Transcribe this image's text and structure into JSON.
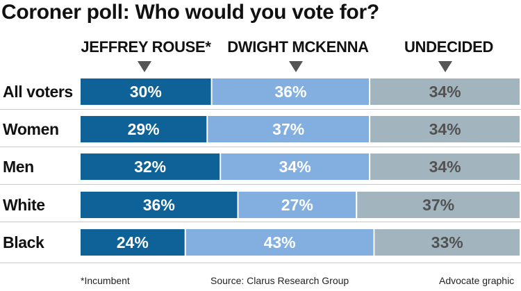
{
  "title": "Coroner poll: Who would you vote for?",
  "footer": {
    "note": "*Incumbent",
    "source": "Source: Clarus Research Group",
    "credit": "Advocate graphic"
  },
  "chart_data": {
    "type": "bar",
    "stacked": true,
    "orientation": "horizontal",
    "categories": [
      "All voters",
      "Women",
      "Men",
      "White",
      "Black"
    ],
    "series": [
      {
        "name": "JEFFREY ROUSE*",
        "values": [
          30,
          29,
          32,
          36,
          24
        ],
        "labels": [
          "30%",
          "29%",
          "32%",
          "36%",
          "24%"
        ],
        "color": "#0f6298",
        "label_color": "#ffffff"
      },
      {
        "name": "DWIGHT MCKENNA",
        "values": [
          36,
          37,
          34,
          27,
          43
        ],
        "labels": [
          "36%",
          "37%",
          "34%",
          "27%",
          "43%"
        ],
        "color": "#82afdf",
        "label_color": "#ffffff"
      },
      {
        "name": "UNDECIDED",
        "values": [
          34,
          34,
          34,
          37,
          33
        ],
        "labels": [
          "34%",
          "34%",
          "34%",
          "37%",
          "33%"
        ],
        "color": "#a2b5be",
        "label_color": "#525252"
      }
    ],
    "xlim": [
      0,
      100
    ],
    "grid": false,
    "legend": "top"
  }
}
